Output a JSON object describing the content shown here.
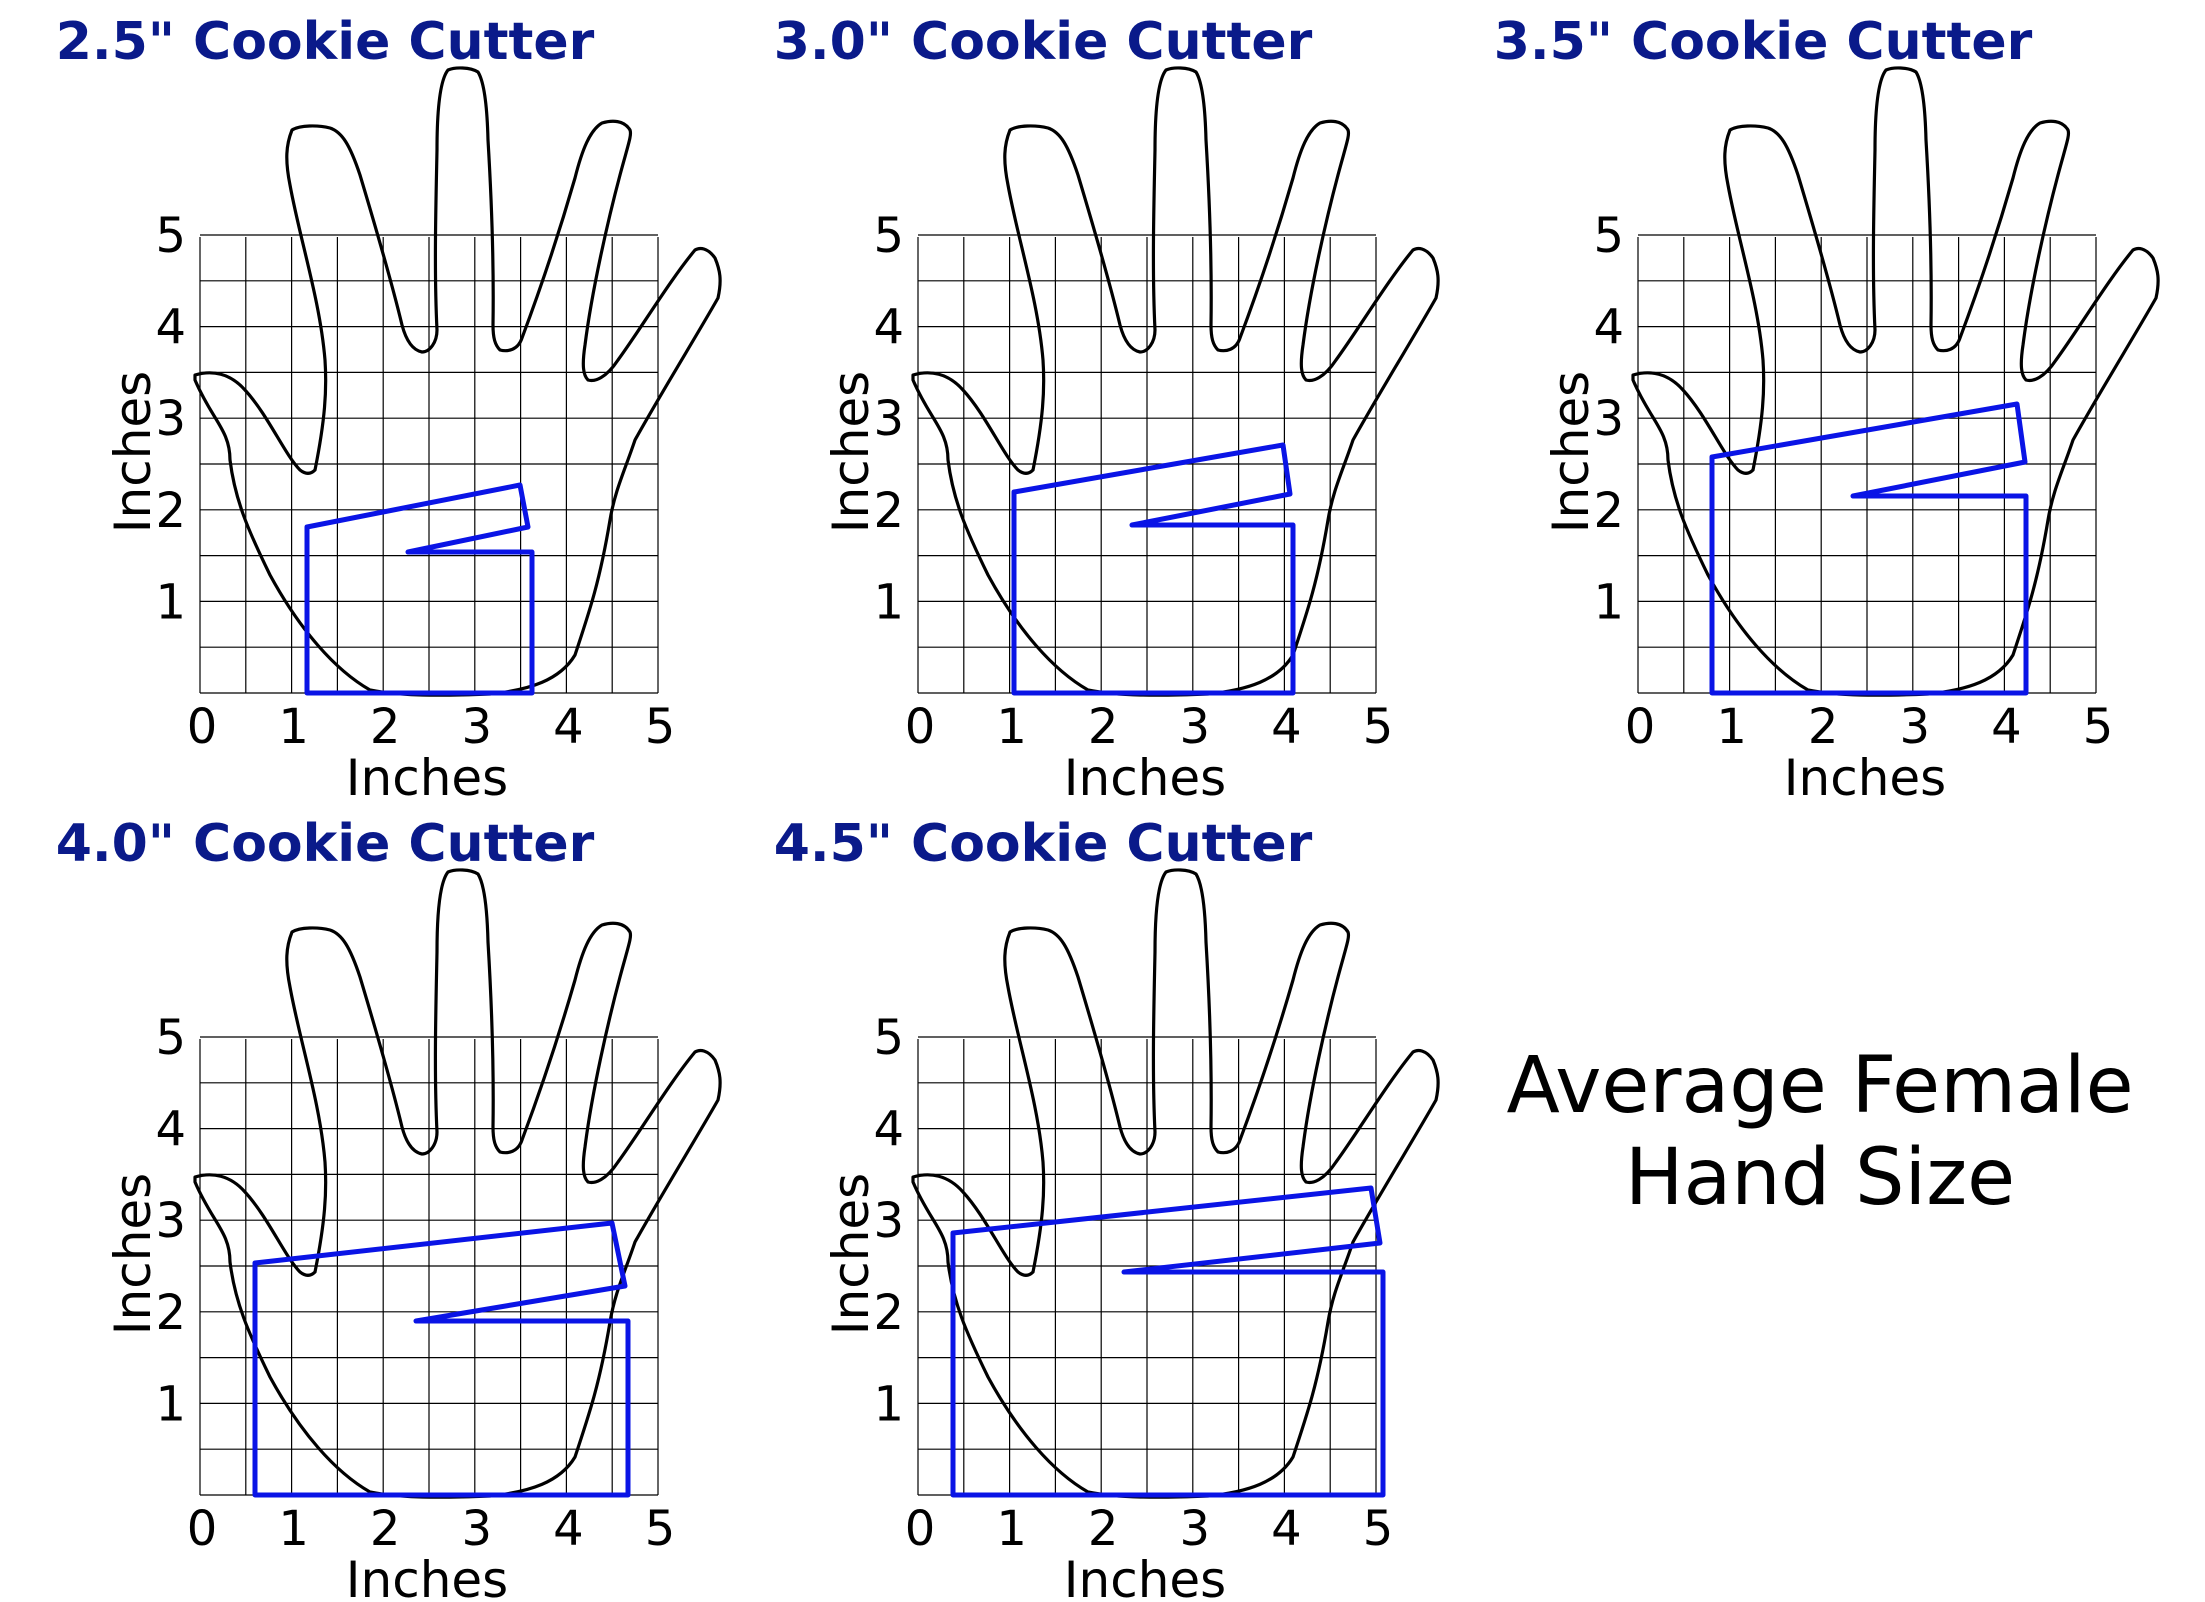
{
  "colors": {
    "title": "#0a1a8a",
    "cutter_outline": "#0a14e6",
    "hand_outline": "#000000",
    "grid": "#000000",
    "background": "#ffffff"
  },
  "icons": {
    "hand": "hand-outline-icon",
    "cutter": "cookie-cutter-outline-icon"
  },
  "axes": {
    "xlabel": "Inches",
    "ylabel": "Inches",
    "x_ticks": [
      "0",
      "1",
      "2",
      "3",
      "4",
      "5"
    ],
    "y_ticks": [
      "1",
      "2",
      "3",
      "4",
      "5"
    ],
    "range_inches": [
      0,
      5
    ],
    "grid_step_inches": 0.5
  },
  "panels": [
    {
      "title": "2.5\" Cookie Cutter",
      "cutter_size_in": 2.5
    },
    {
      "title": "3.0\" Cookie Cutter",
      "cutter_size_in": 3.0
    },
    {
      "title": "3.5\" Cookie Cutter",
      "cutter_size_in": 3.5
    },
    {
      "title": "4.0\" Cookie Cutter",
      "cutter_size_in": 4.0
    },
    {
      "title": "4.5\" Cookie Cutter",
      "cutter_size_in": 4.5
    }
  ],
  "caption": {
    "line1": "Average Female",
    "line2": "Hand Size"
  }
}
